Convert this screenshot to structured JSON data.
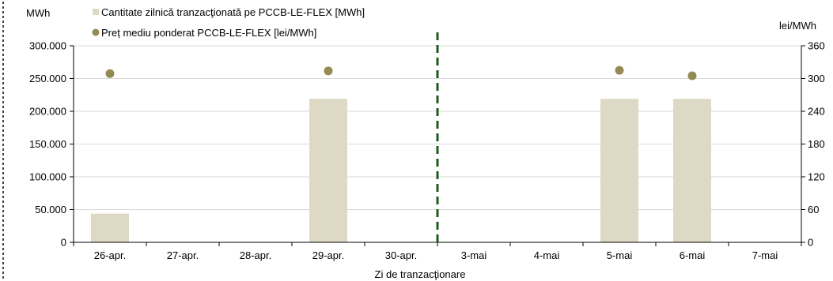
{
  "chart_data": {
    "type": "bar",
    "categories": [
      "26-apr.",
      "27-apr.",
      "28-apr.",
      "29-apr.",
      "30-apr.",
      "3-mai",
      "4-mai",
      "5-mai",
      "6-mai",
      "7-mai"
    ],
    "series": [
      {
        "name": "Cantitate zilnică tranzacţionată pe PCCB-LE-FLEX [MWh]",
        "type": "bar",
        "axis": "left",
        "color": "#ddd9c4",
        "values": [
          43800,
          null,
          null,
          219000,
          null,
          null,
          null,
          219000,
          219000,
          null
        ]
      },
      {
        "name": "Preț mediu ponderat PCCB-LE-FLEX [lei/MWh]",
        "type": "scatter",
        "axis": "right",
        "color": "#948a54",
        "values": [
          309,
          null,
          null,
          314,
          null,
          null,
          null,
          315,
          305,
          null
        ]
      }
    ],
    "xlabel": "Zi de tranzacţionare",
    "ylabel_left": "MWh",
    "ylabel_right": "lei/MWh",
    "ylim_left": [
      0,
      300000
    ],
    "ylim_right": [
      0,
      360
    ],
    "yticks_left": [
      "0",
      "50.000",
      "100.000",
      "150.000",
      "200.000",
      "250.000",
      "300.000"
    ],
    "yticks_right": [
      "0",
      "60",
      "120",
      "180",
      "240",
      "300",
      "360"
    ],
    "grid": true,
    "legend_position": "top-left",
    "annotation": {
      "type": "dashed vertical line",
      "between": [
        "30-apr.",
        "3-mai"
      ],
      "color": "#1e5a1e"
    }
  }
}
